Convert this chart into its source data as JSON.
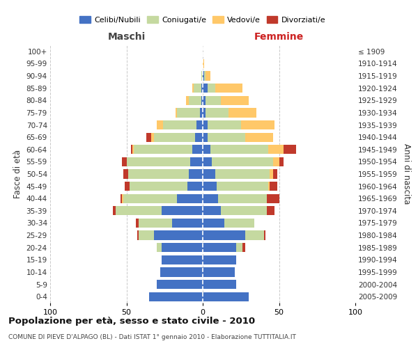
{
  "age_groups": [
    "0-4",
    "5-9",
    "10-14",
    "15-19",
    "20-24",
    "25-29",
    "30-34",
    "35-39",
    "40-44",
    "45-49",
    "50-54",
    "55-59",
    "60-64",
    "65-69",
    "70-74",
    "75-79",
    "80-84",
    "85-89",
    "90-94",
    "95-99",
    "100+"
  ],
  "birth_years": [
    "2005-2009",
    "2000-2004",
    "1995-1999",
    "1990-1994",
    "1985-1989",
    "1980-1984",
    "1975-1979",
    "1970-1974",
    "1965-1969",
    "1960-1964",
    "1955-1959",
    "1950-1954",
    "1945-1949",
    "1940-1944",
    "1935-1939",
    "1930-1934",
    "1925-1929",
    "1920-1924",
    "1915-1919",
    "1910-1914",
    "≤ 1909"
  ],
  "maschi": {
    "celibi": [
      35,
      30,
      28,
      27,
      27,
      32,
      20,
      27,
      17,
      10,
      9,
      8,
      7,
      5,
      4,
      2,
      1,
      1,
      0,
      0,
      0
    ],
    "coniugati": [
      0,
      0,
      0,
      0,
      3,
      10,
      22,
      30,
      35,
      38,
      40,
      42,
      38,
      27,
      22,
      15,
      8,
      5,
      1,
      0,
      0
    ],
    "vedovi": [
      0,
      0,
      0,
      0,
      0,
      0,
      0,
      0,
      1,
      0,
      0,
      0,
      1,
      2,
      4,
      1,
      2,
      1,
      0,
      0,
      0
    ],
    "divorziati": [
      0,
      0,
      0,
      0,
      0,
      1,
      2,
      2,
      1,
      3,
      3,
      3,
      1,
      3,
      0,
      0,
      0,
      0,
      0,
      0,
      0
    ]
  },
  "femmine": {
    "nubili": [
      30,
      22,
      21,
      22,
      22,
      28,
      14,
      12,
      10,
      9,
      8,
      6,
      5,
      3,
      3,
      2,
      2,
      3,
      1,
      0,
      0
    ],
    "coniugate": [
      0,
      0,
      0,
      0,
      4,
      12,
      20,
      30,
      32,
      34,
      36,
      40,
      38,
      25,
      22,
      15,
      10,
      5,
      1,
      0,
      0
    ],
    "vedove": [
      0,
      0,
      0,
      0,
      0,
      0,
      0,
      0,
      0,
      1,
      2,
      4,
      10,
      18,
      22,
      18,
      18,
      18,
      3,
      1,
      0
    ],
    "divorziate": [
      0,
      0,
      0,
      0,
      2,
      1,
      0,
      5,
      8,
      5,
      3,
      3,
      8,
      0,
      0,
      0,
      0,
      0,
      0,
      0,
      0
    ]
  },
  "colors": {
    "celibi_nubili": "#4472c4",
    "coniugati_e": "#c5d9a0",
    "vedovi_e": "#ffc869",
    "divorziati_e": "#c0392b"
  },
  "xlim": 100,
  "title": "Popolazione per età, sesso e stato civile - 2010",
  "subtitle": "COMUNE DI PIEVE D'ALPAGO (BL) - Dati ISTAT 1° gennaio 2010 - Elaborazione TUTTITALIA.IT",
  "ylabel_left": "Fasce di età",
  "ylabel_right": "Anni di nascita",
  "xlabel_maschi": "Maschi",
  "xlabel_femmine": "Femmine",
  "legend_labels": [
    "Celibi/Nubili",
    "Coniugati/e",
    "Vedovi/e",
    "Divorziati/e"
  ],
  "bar_height": 0.75,
  "background_color": "#ffffff",
  "grid_color": "#bbbbbb"
}
